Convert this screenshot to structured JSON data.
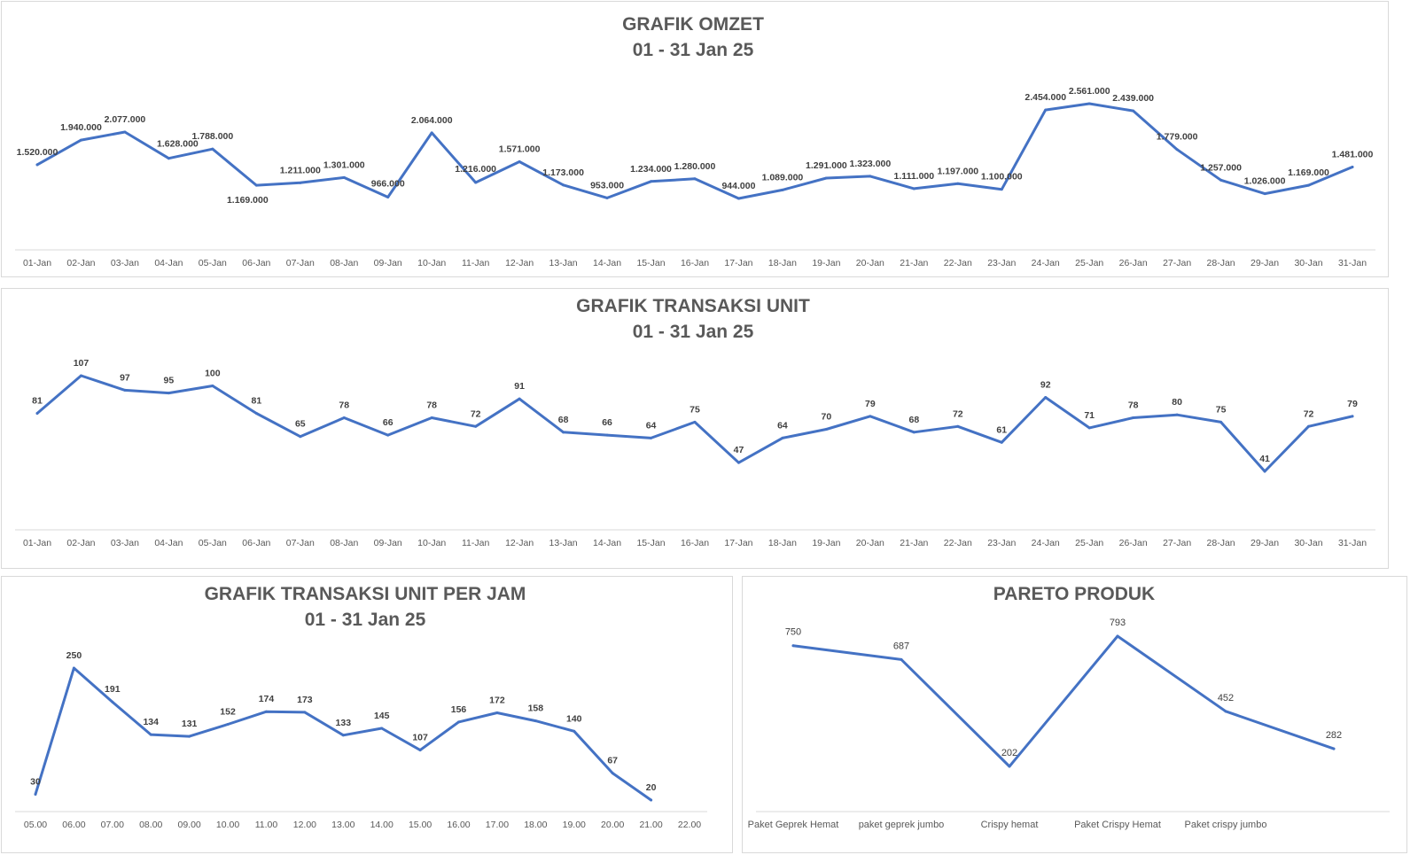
{
  "colors": {
    "line": "#4472c4",
    "title": "#595959",
    "label": "#404040",
    "axis": "#d9d9d9"
  },
  "chart_data": [
    {
      "id": "omzet",
      "type": "line",
      "title": "GRAFIK OMZET",
      "subtitle": "01 - 31 Jan 25",
      "categories": [
        "01-Jan",
        "02-Jan",
        "03-Jan",
        "04-Jan",
        "05-Jan",
        "06-Jan",
        "07-Jan",
        "08-Jan",
        "09-Jan",
        "10-Jan",
        "11-Jan",
        "12-Jan",
        "13-Jan",
        "14-Jan",
        "15-Jan",
        "16-Jan",
        "17-Jan",
        "18-Jan",
        "19-Jan",
        "20-Jan",
        "21-Jan",
        "22-Jan",
        "23-Jan",
        "24-Jan",
        "25-Jan",
        "26-Jan",
        "27-Jan",
        "28-Jan",
        "29-Jan",
        "30-Jan",
        "31-Jan"
      ],
      "values": [
        1520000,
        1940000,
        2077000,
        1628000,
        1788000,
        1169000,
        1211000,
        1301000,
        966000,
        2064000,
        1216000,
        1571000,
        1173000,
        953000,
        1234000,
        1280000,
        944000,
        1089000,
        1291000,
        1323000,
        1111000,
        1197000,
        1100000,
        2454000,
        2561000,
        2439000,
        1779000,
        1257000,
        1026000,
        1169000,
        1481000
      ],
      "data_labels": [
        "1.520.000",
        "1.940.000",
        "2.077.000",
        "1.628.000",
        "1.788.000",
        "1.169.000",
        "1.211.000",
        "1.301.000",
        "966.000",
        "2.064.000",
        "1.216.000",
        "1.571.000",
        "1.173.000",
        "953.000",
        "1.234.000",
        "1.280.000",
        "944.000",
        "1.089.000",
        "1.291.000",
        "1.323.000",
        "1.111.000",
        "1.197.000",
        "1.100.000",
        "2.454.000",
        "2.561.000",
        "2.439.000",
        "1.779.000",
        "1.257.000",
        "1.026.000",
        "1.169.000",
        "1.481.000"
      ],
      "xlabel": "",
      "ylabel": "",
      "grid": false,
      "legend": "none"
    },
    {
      "id": "unit",
      "type": "line",
      "title": "GRAFIK TRANSAKSI UNIT",
      "subtitle": "01 - 31 Jan 25",
      "categories": [
        "01-Jan",
        "02-Jan",
        "03-Jan",
        "04-Jan",
        "05-Jan",
        "06-Jan",
        "07-Jan",
        "08-Jan",
        "09-Jan",
        "10-Jan",
        "11-Jan",
        "12-Jan",
        "13-Jan",
        "14-Jan",
        "15-Jan",
        "16-Jan",
        "17-Jan",
        "18-Jan",
        "19-Jan",
        "20-Jan",
        "21-Jan",
        "22-Jan",
        "23-Jan",
        "24-Jan",
        "25-Jan",
        "26-Jan",
        "27-Jan",
        "28-Jan",
        "29-Jan",
        "30-Jan",
        "31-Jan"
      ],
      "values": [
        81,
        107,
        97,
        95,
        100,
        81,
        65,
        78,
        66,
        78,
        72,
        91,
        68,
        66,
        64,
        75,
        47,
        64,
        70,
        79,
        68,
        72,
        61,
        92,
        71,
        78,
        80,
        75,
        41,
        72,
        79
      ],
      "data_labels": [
        "81",
        "107",
        "97",
        "95",
        "100",
        "81",
        "65",
        "78",
        "66",
        "78",
        "72",
        "91",
        "68",
        "66",
        "64",
        "75",
        "47",
        "64",
        "70",
        "79",
        "68",
        "72",
        "61",
        "92",
        "71",
        "78",
        "80",
        "75",
        "41",
        "72",
        "79"
      ],
      "xlabel": "",
      "ylabel": "",
      "grid": false,
      "legend": "none"
    },
    {
      "id": "jam",
      "type": "line",
      "title": "GRAFIK TRANSAKSI UNIT PER JAM",
      "subtitle": "01 - 31 Jan 25",
      "categories": [
        "05.00",
        "06.00",
        "07.00",
        "08.00",
        "09.00",
        "10.00",
        "11.00",
        "12.00",
        "13.00",
        "14.00",
        "15.00",
        "16.00",
        "17.00",
        "18.00",
        "19.00",
        "20.00",
        "21.00",
        "22.00"
      ],
      "values": [
        30,
        250,
        191,
        134,
        131,
        152,
        174,
        173,
        133,
        145,
        107,
        156,
        172,
        158,
        140,
        67,
        20,
        null
      ],
      "data_labels": [
        "30",
        "250",
        "191",
        "134",
        "131",
        "152",
        "174",
        "173",
        "133",
        "145",
        "107",
        "156",
        "172",
        "158",
        "140",
        "67",
        "20",
        ""
      ],
      "xlabel": "",
      "ylabel": "",
      "grid": false,
      "legend": "none"
    },
    {
      "id": "pareto",
      "type": "line",
      "title": "PARETO PRODUK",
      "subtitle": "",
      "categories": [
        "Paket Geprek Hemat",
        "paket geprek jumbo",
        "Crispy hemat",
        "Paket Crispy Hemat",
        "Paket crispy jumbo",
        ""
      ],
      "values": [
        750,
        687,
        202,
        793,
        452,
        282
      ],
      "data_labels": [
        "750",
        "687",
        "202",
        "793",
        "452",
        "282"
      ],
      "xlabel": "",
      "ylabel": "",
      "grid": false,
      "legend": "none"
    }
  ]
}
